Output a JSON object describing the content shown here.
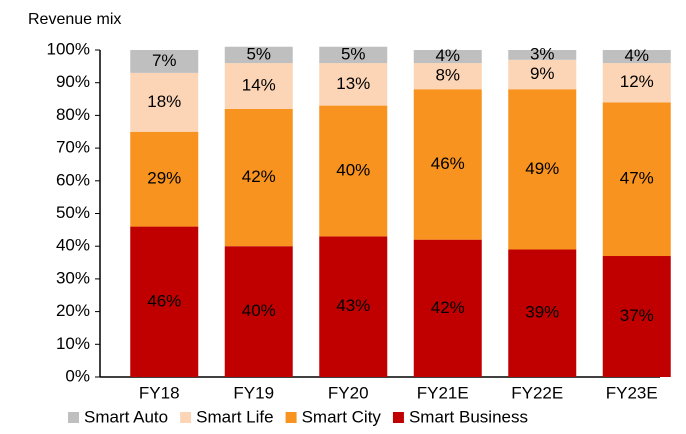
{
  "chart_data": {
    "type": "stacked_bar",
    "title": "Revenue mix",
    "categories": [
      "FY18",
      "FY19",
      "FY20",
      "FY21E",
      "FY22E",
      "FY23E"
    ],
    "series": [
      {
        "name": "Smart Business",
        "color": "#c00000",
        "values": [
          46,
          40,
          43,
          42,
          39,
          37
        ],
        "value_labels": [
          "46%",
          "40%",
          "43%",
          "42%",
          "39%",
          "37%"
        ]
      },
      {
        "name": "Smart City",
        "color": "#f7931e",
        "values": [
          29,
          42,
          40,
          46,
          49,
          47
        ],
        "value_labels": [
          "29%",
          "42%",
          "40%",
          "46%",
          "49%",
          "47%"
        ]
      },
      {
        "name": "Smart Life",
        "color": "#fbd5b5",
        "values": [
          18,
          14,
          13,
          8,
          9,
          12
        ],
        "value_labels": [
          "18%",
          "14%",
          "13%",
          "8%",
          "9%",
          "12%"
        ]
      },
      {
        "name": "Smart Auto",
        "color": "#bfbfbf",
        "values": [
          7,
          5,
          5,
          4,
          3,
          4
        ],
        "value_labels": [
          "7%",
          "5%",
          "5%",
          "4%",
          "3%",
          "4%"
        ]
      }
    ],
    "ylim": [
      0,
      100
    ],
    "yticks": [
      {
        "value": 0,
        "label": "0%"
      },
      {
        "value": 10,
        "label": "10%"
      },
      {
        "value": 20,
        "label": "20%"
      },
      {
        "value": 30,
        "label": "30%"
      },
      {
        "value": 40,
        "label": "40%"
      },
      {
        "value": 50,
        "label": "50%"
      },
      {
        "value": 60,
        "label": "60%"
      },
      {
        "value": 70,
        "label": "70%"
      },
      {
        "value": 80,
        "label": "80%"
      },
      {
        "value": 90,
        "label": "90%"
      },
      {
        "value": 100,
        "label": "100%"
      }
    ],
    "legend": "bottom"
  }
}
